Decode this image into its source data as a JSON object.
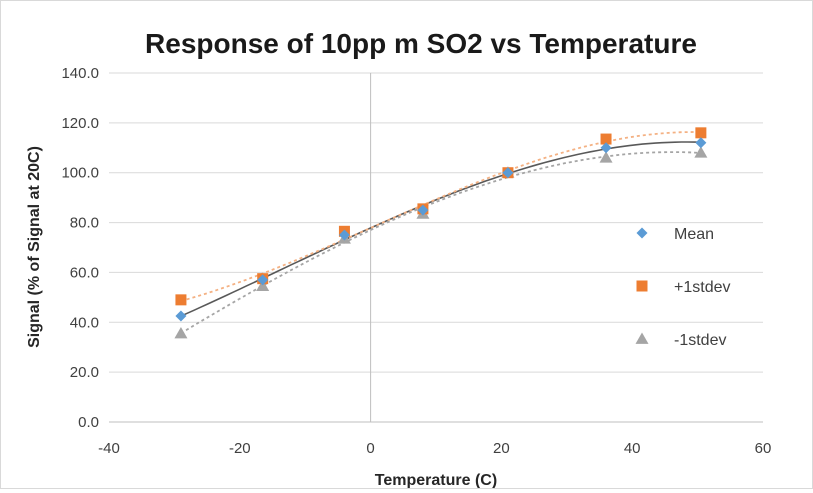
{
  "chart_data": {
    "type": "scatter",
    "title": "Response of 10pp m SO2 vs Temperature",
    "xlabel": "Temperature (C)",
    "ylabel": "Signal (% of Signal at 20C)",
    "xlim": [
      -40,
      60
    ],
    "ylim": [
      0,
      140
    ],
    "x_ticks": [
      "-40",
      "-20",
      "0",
      "20",
      "40",
      "60"
    ],
    "y_ticks": [
      "0.0",
      "20.0",
      "40.0",
      "60.0",
      "80.0",
      "100.0",
      "120.0",
      "140.0"
    ],
    "grid": "horizontal",
    "legend_position": "right",
    "series": [
      {
        "name": "Mean",
        "marker": "diamond",
        "color": "#5b9bd5",
        "trendline_color": "#595959",
        "x": [
          -29,
          -16.5,
          -4,
          8,
          21,
          36,
          50.5
        ],
        "y": [
          42.5,
          57,
          75,
          85,
          100,
          110,
          112
        ]
      },
      {
        "name": "+1stdev",
        "marker": "square",
        "color": "#ed7d31",
        "trendline_color": "#f4b183",
        "x": [
          -29,
          -16.5,
          -4,
          8,
          21,
          36,
          50.5
        ],
        "y": [
          49,
          57.5,
          76.5,
          85.5,
          100,
          113.5,
          116
        ]
      },
      {
        "name": "-1stdev",
        "marker": "triangle",
        "color": "#a5a5a5",
        "trendline_color": "#a5a5a5",
        "x": [
          -29,
          -16.5,
          -4,
          8,
          21,
          36,
          50.5
        ],
        "y": [
          35.5,
          54.5,
          73.5,
          83.5,
          100,
          106,
          108
        ]
      }
    ]
  }
}
